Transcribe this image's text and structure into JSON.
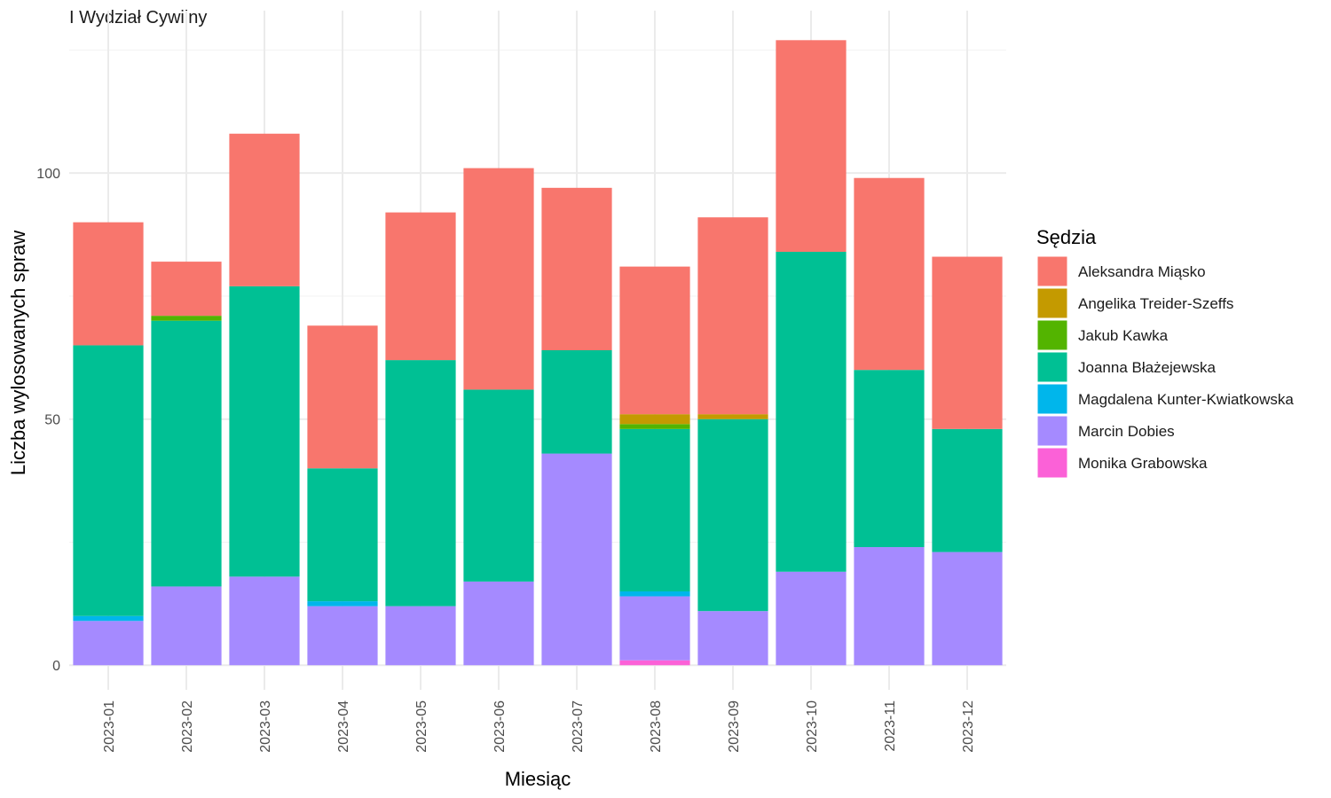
{
  "chart_data": {
    "type": "bar",
    "stacked": true,
    "title": "I Wydział Cywilny",
    "xlabel": "Miesiąc",
    "ylabel": "Liczba wylosowanych spraw",
    "ylim": [
      -5,
      133
    ],
    "yticks": [
      0,
      50,
      100
    ],
    "grid": true,
    "legend_position": "right",
    "legend_title": "Sędzia",
    "categories": [
      "2023-01",
      "2023-02",
      "2023-03",
      "2023-04",
      "2023-05",
      "2023-06",
      "2023-07",
      "2023-08",
      "2023-09",
      "2023-10",
      "2023-11",
      "2023-12"
    ],
    "stack_order_bottom_to_top": [
      "Monika Grabowska",
      "Marcin Dobies",
      "Magdalena Kunter-Kwiatkowska",
      "Joanna Błażejewska",
      "Jakub Kawka",
      "Angelika Treider-Szeffs",
      "Aleksandra Miąsko"
    ],
    "series": [
      {
        "name": "Aleksandra Miąsko",
        "color": "#F8766D",
        "values": [
          25,
          11,
          31,
          29,
          30,
          45,
          33,
          30,
          40,
          43,
          39,
          35
        ]
      },
      {
        "name": "Angelika Treider-Szeffs",
        "color": "#C49A00",
        "values": [
          0,
          0,
          0,
          0,
          0,
          0,
          0,
          2,
          1,
          0,
          0,
          0
        ]
      },
      {
        "name": "Jakub Kawka",
        "color": "#53B400",
        "values": [
          0,
          1,
          0,
          0,
          0,
          0,
          0,
          1,
          0,
          0,
          0,
          0
        ]
      },
      {
        "name": "Joanna Błażejewska",
        "color": "#00C094",
        "values": [
          55,
          54,
          59,
          27,
          50,
          39,
          21,
          33,
          39,
          65,
          36,
          25
        ]
      },
      {
        "name": "Magdalena Kunter-Kwiatkowska",
        "color": "#00B6EB",
        "values": [
          1,
          0,
          0,
          1,
          0,
          0,
          0,
          1,
          0,
          0,
          0,
          0
        ]
      },
      {
        "name": "Marcin Dobies",
        "color": "#A58AFF",
        "values": [
          9,
          16,
          18,
          12,
          12,
          17,
          43,
          13,
          11,
          19,
          24,
          23
        ]
      },
      {
        "name": "Monika Grabowska",
        "color": "#FB61D7",
        "values": [
          0,
          0,
          0,
          0,
          0,
          0,
          0,
          1,
          0,
          0,
          0,
          0
        ]
      }
    ]
  }
}
